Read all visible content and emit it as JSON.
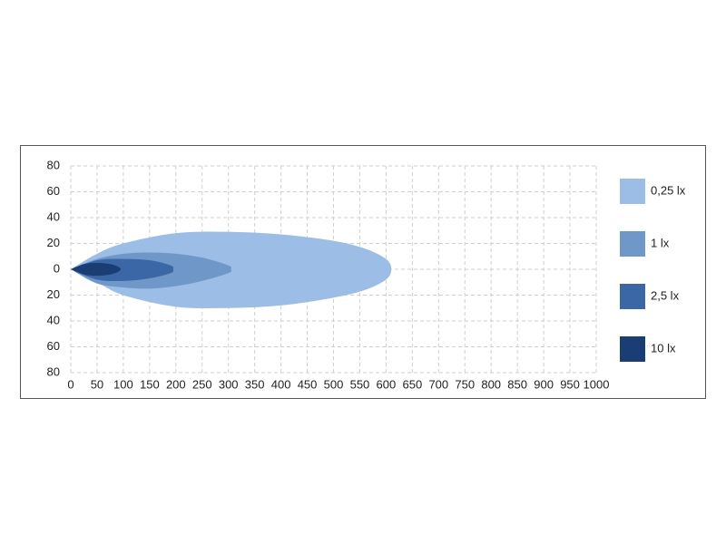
{
  "chart_data": {
    "type": "isolux",
    "xlim": [
      0,
      1000
    ],
    "xticks": [
      0,
      50,
      100,
      150,
      200,
      250,
      300,
      350,
      400,
      450,
      500,
      550,
      600,
      650,
      700,
      750,
      800,
      850,
      900,
      950,
      1000
    ],
    "ylim": [
      -80,
      80
    ],
    "yticks": [
      {
        "value": 80,
        "label": "80"
      },
      {
        "value": 60,
        "label": "60"
      },
      {
        "value": 40,
        "label": "40"
      },
      {
        "value": 20,
        "label": "20"
      },
      0,
      {
        "value": -20,
        "label": "20"
      },
      {
        "value": -40,
        "label": "40"
      },
      {
        "value": -60,
        "label": "60"
      },
      {
        "value": -80,
        "label": "80"
      }
    ],
    "grid": true,
    "legend": "right",
    "series": [
      {
        "name": "0,25 lx",
        "color": "#9bbde6",
        "x": [
          0,
          50,
          100,
          200,
          300,
          400,
          500,
          560,
          600,
          610
        ],
        "upper": [
          0,
          12,
          20,
          28,
          29,
          27,
          22,
          16,
          8,
          0
        ],
        "lower": [
          0,
          -10,
          -20,
          -29,
          -30,
          -28,
          -22,
          -16,
          -8,
          0
        ]
      },
      {
        "name": "1 lx",
        "color": "#6f98c9",
        "x": [
          0,
          50,
          100,
          150,
          200,
          250,
          300,
          305
        ],
        "upper": [
          0,
          8,
          12,
          13,
          12,
          9,
          3,
          0
        ],
        "lower": [
          0,
          -11,
          -14,
          -15,
          -13,
          -9,
          -3,
          0
        ]
      },
      {
        "name": "2,5 lx",
        "color": "#3c67a6",
        "x": [
          0,
          50,
          100,
          150,
          190,
          195
        ],
        "upper": [
          0,
          7,
          8,
          7,
          3,
          0
        ],
        "lower": [
          0,
          -8,
          -9,
          -7,
          -3,
          0
        ]
      },
      {
        "name": "10 lx",
        "color": "#1a3d73",
        "x": [
          0,
          25,
          50,
          75,
          90,
          95
        ],
        "upper": [
          0,
          4,
          5,
          4,
          2,
          0
        ],
        "lower": [
          0,
          -4,
          -5,
          -4,
          -2,
          0
        ]
      }
    ]
  }
}
